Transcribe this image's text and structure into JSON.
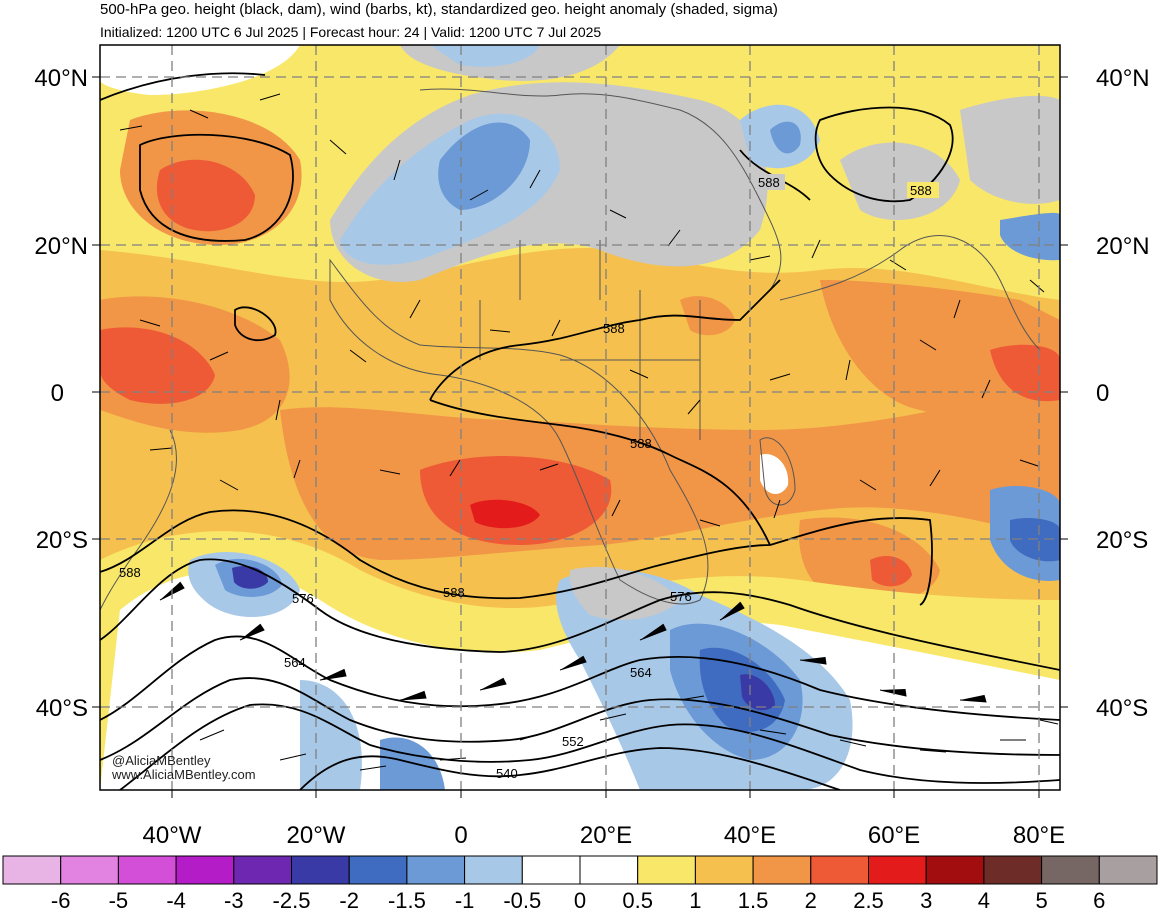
{
  "header": {
    "title": "500-hPa geo. height (black, dam), wind (barbs, kt), standardized geo. height anomaly (shaded, sigma)",
    "subtitle": "Initialized: 1200 UTC 6 Jul 2025 | Forecast hour: 24 | Valid: 1200 UTC 7 Jul 2025"
  },
  "map": {
    "lat_labels": [
      "40°N",
      "20°N",
      "0",
      "20°S",
      "40°S"
    ],
    "lon_labels": [
      "40°W",
      "20°W",
      "0",
      "20°E",
      "40°E",
      "60°E",
      "80°E"
    ],
    "contour_labels": [
      "588",
      "588",
      "588",
      "588",
      "588",
      "588",
      "576",
      "576",
      "564",
      "564",
      "552",
      "540"
    ],
    "credit_line1": "@AliciaMBentley",
    "credit_line2": "www.AliciaMBentley.com"
  },
  "colorbar": {
    "labels": [
      "-6",
      "-5",
      "-4",
      "-3",
      "-2.5",
      "-2",
      "-1.5",
      "-1",
      "-0.5",
      "0",
      "0.5",
      "1",
      "1.5",
      "2",
      "2.5",
      "3",
      "4",
      "5",
      "6"
    ],
    "colors": [
      "#e8b4e6",
      "#e283e2",
      "#d44fd8",
      "#b41cc8",
      "#6e27b0",
      "#3a3aa6",
      "#3f6cc0",
      "#6b9ad6",
      "#a8c8e8",
      "#ffffff",
      "#ffffff",
      "#f9e76a",
      "#f5c04e",
      "#f19547",
      "#ee5a36",
      "#e31b1b",
      "#a20d10",
      "#6e2c28",
      "#766764",
      "#a8a0a0"
    ]
  }
}
